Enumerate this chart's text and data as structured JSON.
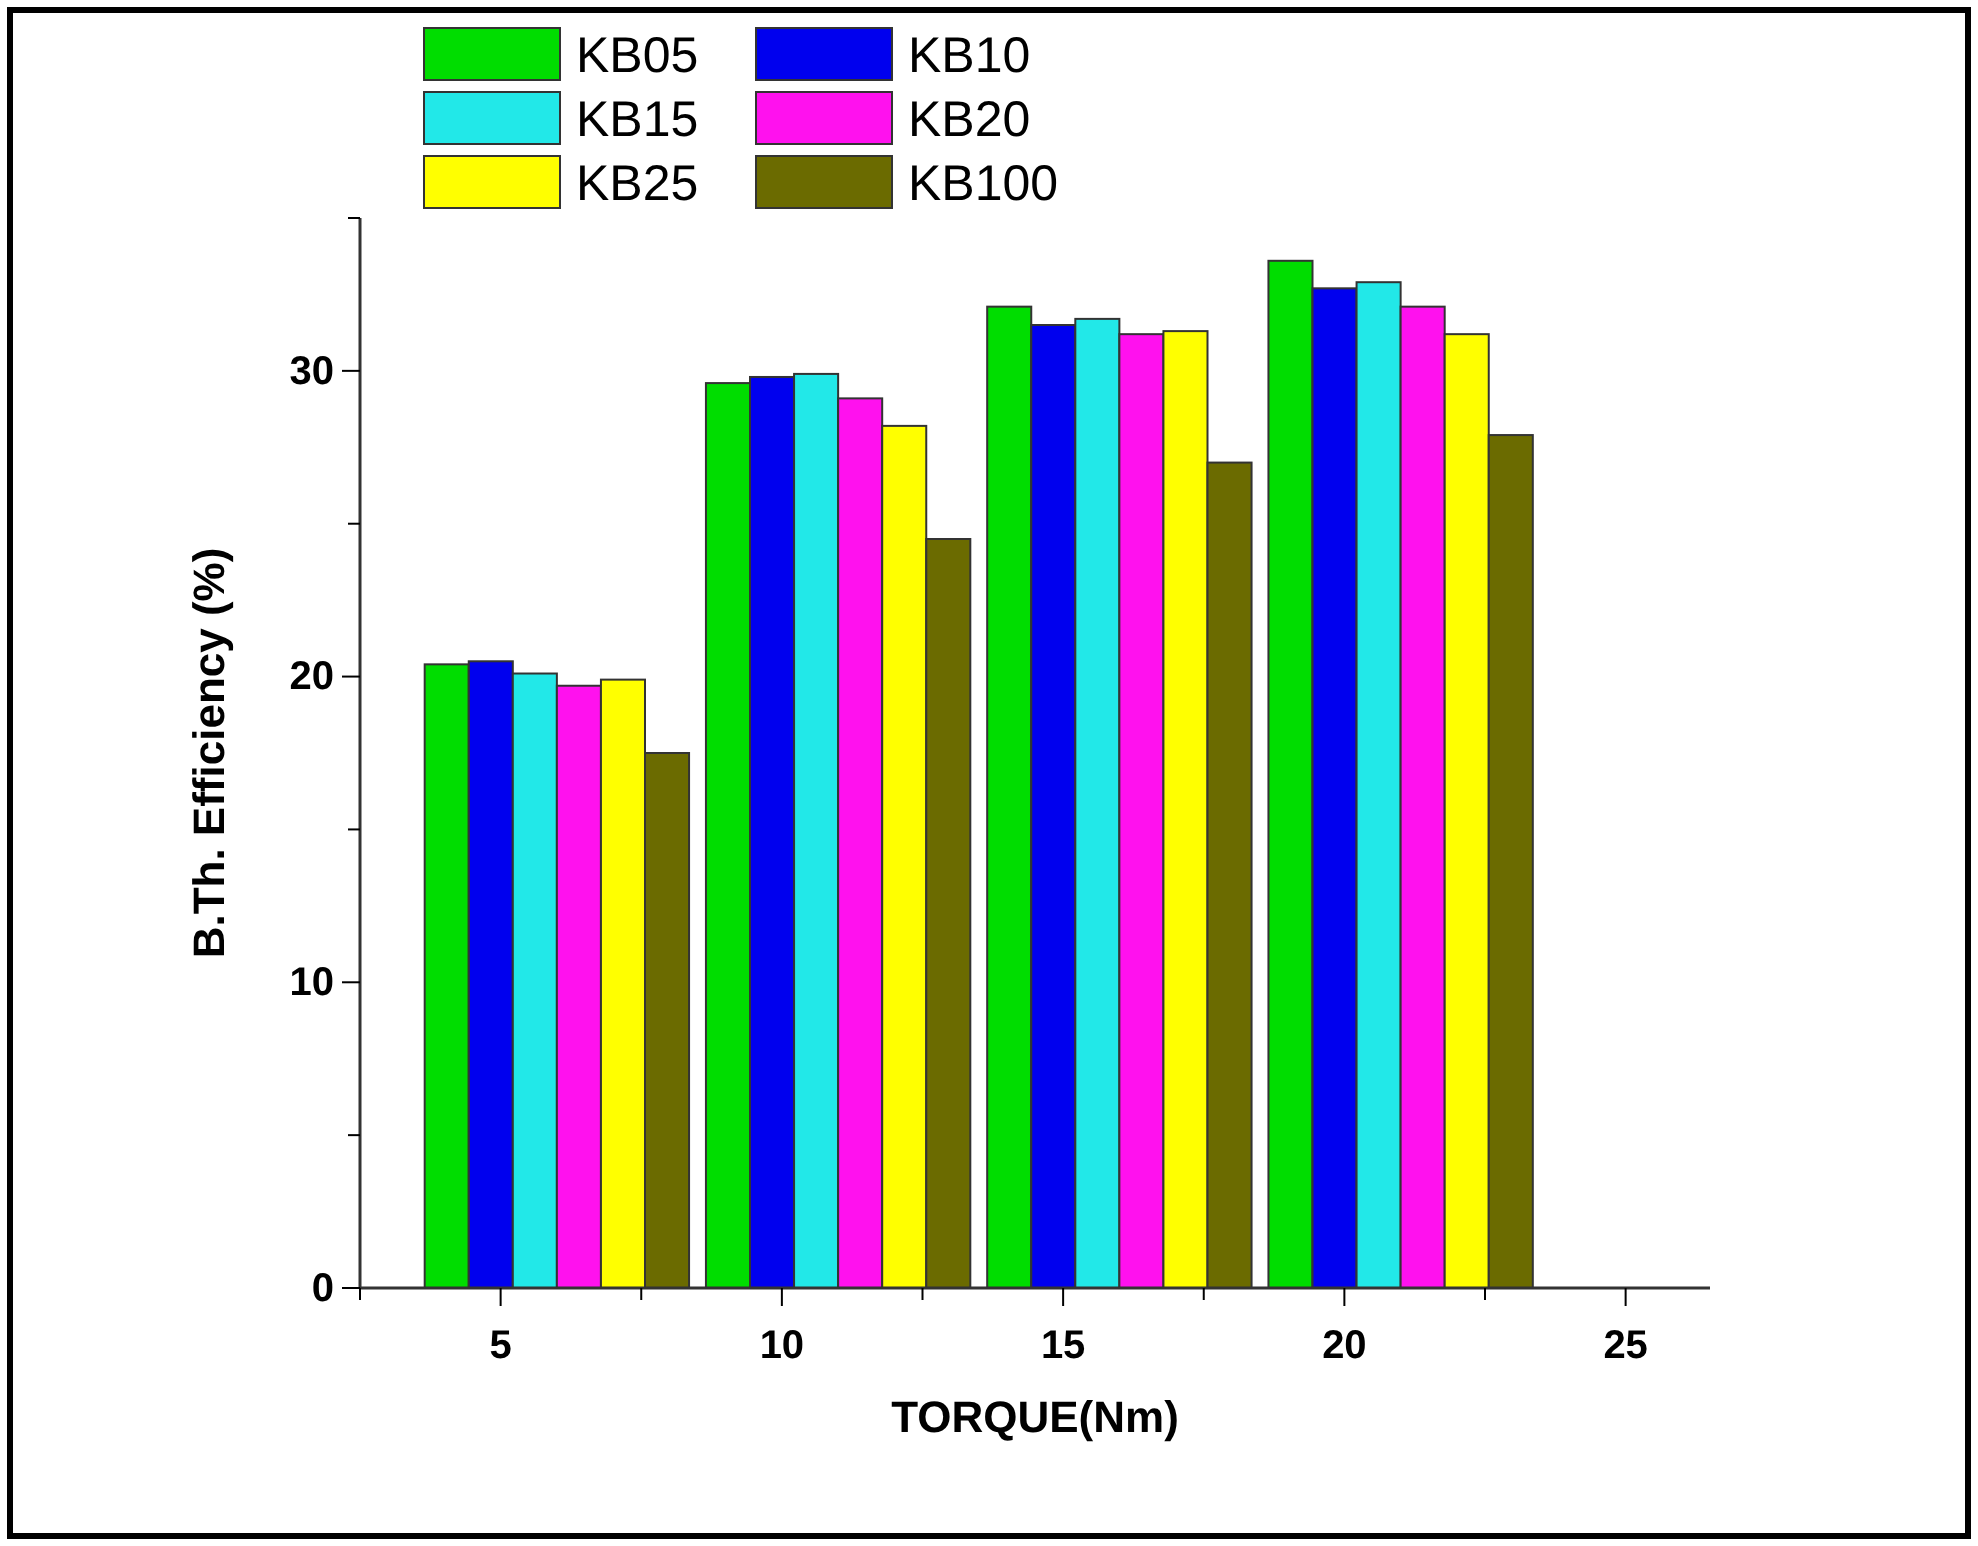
{
  "chart_data": {
    "type": "bar",
    "xlabel": "TORQUE(Nm)",
    "ylabel": "B.Th. Efficiency (%)",
    "x": [
      6,
      11,
      16,
      21
    ],
    "xlim": [
      2.5,
      26.5
    ],
    "xticks": [
      {
        "value": 2.5,
        "label": null
      },
      5,
      {
        "value": 7.5,
        "label": null
      },
      10,
      {
        "value": 12.5,
        "label": null
      },
      15,
      {
        "value": 17.5,
        "label": null
      },
      20,
      {
        "value": 22.5,
        "label": null
      },
      25
    ],
    "ylim": [
      0,
      35
    ],
    "yticks": [
      0,
      {
        "value": 5,
        "label": null
      },
      10,
      {
        "value": 15,
        "label": null
      },
      20,
      {
        "value": 25,
        "label": null
      },
      30,
      {
        "value": 35,
        "label": null
      }
    ],
    "legend": "top left",
    "grid": false,
    "series": [
      {
        "name": "KB05",
        "color": "#00dd00",
        "values": [
          20.4,
          29.6,
          32.1,
          33.6
        ]
      },
      {
        "name": "KB10",
        "color": "#0000ee",
        "values": [
          20.5,
          29.8,
          31.5,
          32.7
        ]
      },
      {
        "name": "KB15",
        "color": "#22e8e8",
        "values": [
          20.1,
          29.9,
          31.7,
          32.9
        ]
      },
      {
        "name": "KB20",
        "color": "#ff11ee",
        "values": [
          19.7,
          29.1,
          31.2,
          32.1
        ]
      },
      {
        "name": "KB25",
        "color": "#ffff00",
        "values": [
          19.9,
          28.2,
          31.3,
          31.2
        ]
      },
      {
        "name": "KB100",
        "color": "#6b6b00",
        "values": [
          17.5,
          24.5,
          27.0,
          27.9
        ]
      }
    ]
  }
}
